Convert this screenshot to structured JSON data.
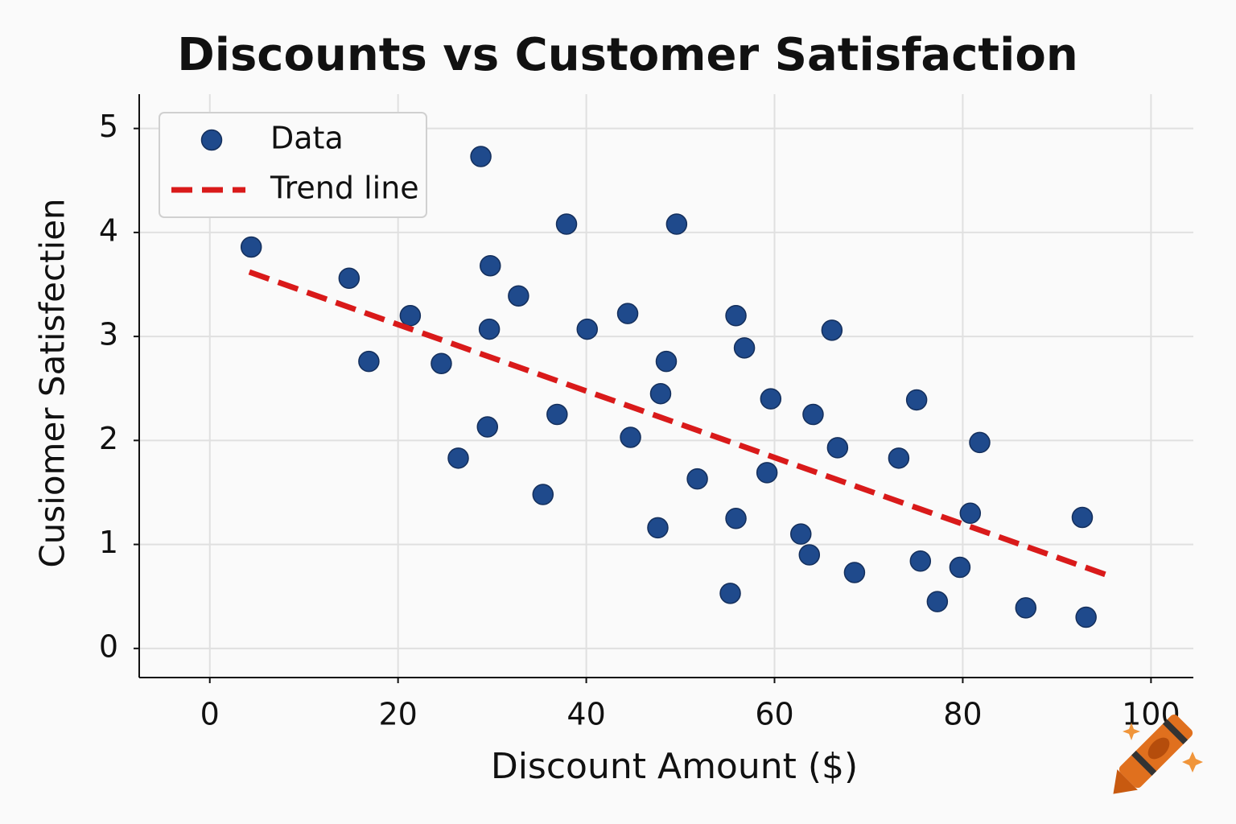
{
  "chart_data": {
    "type": "scatter",
    "title": "Discounts vs Customer Satisfaction",
    "x_label": "Discount Amount ($)",
    "y_label": "Cusiomer Satisfectien",
    "xlim": [
      -7.5,
      104.5
    ],
    "ylim": [
      -0.28,
      5.33
    ],
    "xticks": [
      0,
      20,
      40,
      60,
      80,
      100
    ],
    "yticks": [
      0,
      1,
      2,
      3,
      4,
      5
    ],
    "grid": true,
    "legend": "upper-left",
    "series": [
      {
        "name": "Data",
        "color": "#1f4a8c",
        "x": [
          4.4,
          14.8,
          16.9,
          21.3,
          24.6,
          26.4,
          28.8,
          29.8,
          29.7,
          29.5,
          32.8,
          35.4,
          36.9,
          37.9,
          40.1,
          44.4,
          44.7,
          48.5,
          47.9,
          47.6,
          49.6,
          51.8,
          55.3,
          55.9,
          55.9,
          56.8,
          59.6,
          59.2,
          62.8,
          63.7,
          64.1,
          66.1,
          66.7,
          68.5,
          73.2,
          75.1,
          75.5,
          77.3,
          79.7,
          80.8,
          81.8,
          86.7,
          92.7,
          93.1
        ],
        "values": [
          3.86,
          3.56,
          2.76,
          3.2,
          2.74,
          1.83,
          4.73,
          3.68,
          3.07,
          2.13,
          3.39,
          1.48,
          2.25,
          4.08,
          3.07,
          3.22,
          2.03,
          2.76,
          2.45,
          1.16,
          4.08,
          1.63,
          0.53,
          3.2,
          1.25,
          2.89,
          2.4,
          1.69,
          1.1,
          0.9,
          2.25,
          3.06,
          1.93,
          0.73,
          1.83,
          2.39,
          0.84,
          0.45,
          0.78,
          1.3,
          1.98,
          0.39,
          1.26,
          0.3
        ]
      },
      {
        "name": "Trend line",
        "color": "#d91a1a",
        "line_style": "dashed",
        "x": [
          4.2,
          95.2
        ],
        "values": [
          3.62,
          0.71
        ]
      }
    ]
  }
}
